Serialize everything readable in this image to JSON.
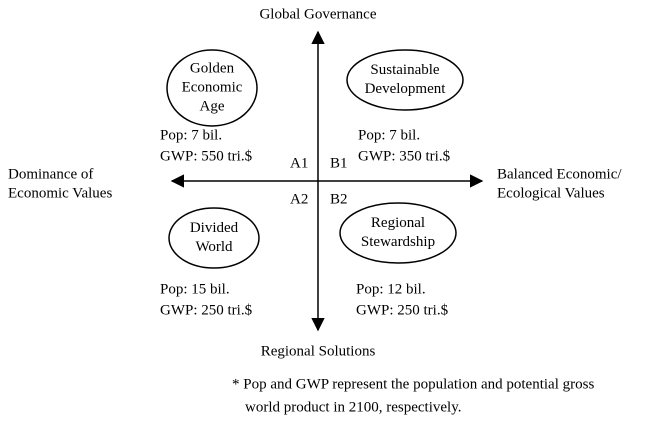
{
  "axes": {
    "top": "Global Governance",
    "bottom": "Regional Solutions",
    "left": [
      "Dominance of",
      "Economic Values"
    ],
    "right": [
      "Balanced Economic/",
      "Ecological Values"
    ]
  },
  "quadrants": [
    {
      "code": "A1",
      "name": [
        "Golden",
        "Economic",
        "Age"
      ],
      "pop": "Pop: 7 bil.",
      "gwp": "GWP: 550 tri.$"
    },
    {
      "code": "B1",
      "name": [
        "Sustainable",
        "Development"
      ],
      "pop": "Pop: 7 bil.",
      "gwp": "GWP: 350 tri.$"
    },
    {
      "code": "A2",
      "name": [
        "Divided",
        "World"
      ],
      "pop": "Pop: 15 bil.",
      "gwp": "GWP: 250 tri.$"
    },
    {
      "code": "B2",
      "name": [
        "Regional",
        "Stewardship"
      ],
      "pop": "Pop: 12 bil.",
      "gwp": "GWP: 250 tri.$"
    }
  ],
  "footnote": [
    "* Pop and GWP represent the population and potential gross",
    "world product in 2100, respectively."
  ]
}
